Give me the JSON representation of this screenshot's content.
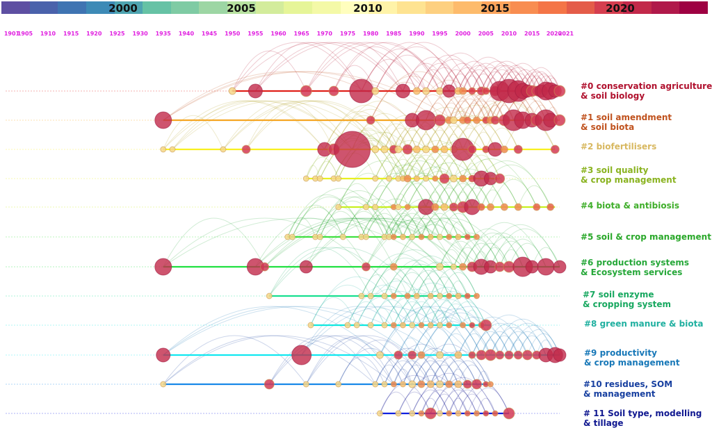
{
  "chart_data": {
    "type": "timeline",
    "title": "",
    "colorbar": {
      "label_years": [
        "2000",
        "2005",
        "2010",
        "2015",
        "2020"
      ],
      "colors": [
        "#5e4fa2",
        "#4a62ab",
        "#3f74b2",
        "#3d8ab6",
        "#4ea4b0",
        "#66c2a5",
        "#7fcba4",
        "#9dd6a4",
        "#b8e2a0",
        "#d3ec9c",
        "#e6f598",
        "#f4f9a7",
        "#fffebe",
        "#fff3a8",
        "#fee391",
        "#fdd080",
        "#fdbb6c",
        "#fca55d",
        "#f88d51",
        "#f47547",
        "#e45c49",
        "#d53e4f",
        "#c2294a",
        "#b0194a",
        "#9e0142"
      ]
    },
    "x_axis": {
      "tick_labels": [
        "1901",
        "1905",
        "1910",
        "1915",
        "1920",
        "1925",
        "1930",
        "1935",
        "1940",
        "1945",
        "1950",
        "1955",
        "1960",
        "1965",
        "1970",
        "1975",
        "1980",
        "1985",
        "1990",
        "1995",
        "2000",
        "2005",
        "2010",
        "2015",
        "2020",
        "2021"
      ],
      "range": [
        1901,
        2021
      ]
    },
    "clusters": [
      {
        "id": 0,
        "label": "#0 conservation agriculture\n& soil biology",
        "color": "#b0112e",
        "line_color": "#e0201a",
        "start": 1950,
        "end": 2021,
        "nodes": [
          [
            1950,
            5
          ],
          [
            1955,
            10
          ],
          [
            1966,
            8
          ],
          [
            1972,
            7
          ],
          [
            1978,
            17
          ],
          [
            1981,
            5
          ],
          [
            1987,
            10
          ],
          [
            1990,
            5
          ],
          [
            1992,
            5
          ],
          [
            1995,
            5
          ],
          [
            1997,
            9
          ],
          [
            1999,
            5
          ],
          [
            2000,
            5
          ],
          [
            2002,
            5
          ],
          [
            2004,
            6
          ],
          [
            2005,
            5
          ],
          [
            2007,
            7
          ],
          [
            2008,
            14
          ],
          [
            2010,
            17
          ],
          [
            2012,
            15
          ],
          [
            2013,
            11
          ],
          [
            2014,
            9
          ],
          [
            2015,
            8
          ],
          [
            2016,
            7
          ],
          [
            2017,
            9
          ],
          [
            2018,
            13
          ],
          [
            2019,
            12
          ],
          [
            2020,
            9
          ],
          [
            2021,
            8
          ]
        ]
      },
      {
        "id": 1,
        "label": "#1 soil amendment\n& soil biota",
        "color": "#c0521e",
        "line_color": "#f5a623",
        "start": 1935,
        "end": 2021,
        "nodes": [
          [
            1935,
            12
          ],
          [
            1980,
            6
          ],
          [
            1989,
            10
          ],
          [
            1992,
            14
          ],
          [
            1995,
            8
          ],
          [
            1997,
            5
          ],
          [
            1998,
            5
          ],
          [
            2000,
            5
          ],
          [
            2001,
            5
          ],
          [
            2003,
            5
          ],
          [
            2005,
            5
          ],
          [
            2006,
            5
          ],
          [
            2007,
            6
          ],
          [
            2009,
            8
          ],
          [
            2011,
            15
          ],
          [
            2013,
            12
          ],
          [
            2015,
            10
          ],
          [
            2016,
            8
          ],
          [
            2018,
            15
          ],
          [
            2019,
            10
          ],
          [
            2021,
            8
          ]
        ]
      },
      {
        "id": 2,
        "label": "#2 biofertilisers",
        "color": "#d8b860",
        "line_color": "#f8f020",
        "start": 1935,
        "end": 2020,
        "nodes": [
          [
            1935,
            4
          ],
          [
            1937,
            4
          ],
          [
            1948,
            4
          ],
          [
            1953,
            6
          ],
          [
            1970,
            10
          ],
          [
            1972,
            8
          ],
          [
            1976,
            26
          ],
          [
            1981,
            5
          ],
          [
            1983,
            5
          ],
          [
            1985,
            6
          ],
          [
            1986,
            5
          ],
          [
            1988,
            7
          ],
          [
            1990,
            5
          ],
          [
            1992,
            5
          ],
          [
            1994,
            5
          ],
          [
            1996,
            5
          ],
          [
            1998,
            5
          ],
          [
            2000,
            16
          ],
          [
            2002,
            6
          ],
          [
            2005,
            5
          ],
          [
            2007,
            10
          ],
          [
            2009,
            5
          ],
          [
            2012,
            6
          ],
          [
            2020,
            6
          ]
        ]
      },
      {
        "id": 3,
        "label": "#3 soil quality\n& crop management",
        "color": "#8ab320",
        "line_color": "#e8f020",
        "start": 1966,
        "end": 2008,
        "nodes": [
          [
            1966,
            4
          ],
          [
            1968,
            4
          ],
          [
            1969,
            4
          ],
          [
            1972,
            4
          ],
          [
            1973,
            4
          ],
          [
            1981,
            4
          ],
          [
            1984,
            4
          ],
          [
            1986,
            4
          ],
          [
            1987,
            4
          ],
          [
            1988,
            5
          ],
          [
            1990,
            4
          ],
          [
            1992,
            4
          ],
          [
            1994,
            4
          ],
          [
            1996,
            7
          ],
          [
            1998,
            5
          ],
          [
            2000,
            5
          ],
          [
            2002,
            5
          ],
          [
            2004,
            11
          ],
          [
            2006,
            9
          ],
          [
            2008,
            7
          ]
        ]
      },
      {
        "id": 4,
        "label": "#4 biota & antibiosis",
        "color": "#3fae2a",
        "line_color": "#c8f020",
        "start": 1973,
        "end": 2020,
        "nodes": [
          [
            1973,
            4
          ],
          [
            1979,
            4
          ],
          [
            1981,
            4
          ],
          [
            1985,
            4
          ],
          [
            1986,
            4
          ],
          [
            1988,
            4
          ],
          [
            1992,
            11
          ],
          [
            1994,
            5
          ],
          [
            1996,
            5
          ],
          [
            1998,
            6
          ],
          [
            2000,
            8
          ],
          [
            2002,
            11
          ],
          [
            2004,
            5
          ],
          [
            2006,
            5
          ],
          [
            2009,
            5
          ],
          [
            2012,
            5
          ],
          [
            2016,
            5
          ],
          [
            2019,
            5
          ]
        ]
      },
      {
        "id": 5,
        "label": "#5 soil & crop management",
        "color": "#2aa82a",
        "line_color": "#40e040",
        "start": 1962,
        "end": 2003,
        "nodes": [
          [
            1962,
            4
          ],
          [
            1963,
            4
          ],
          [
            1968,
            4
          ],
          [
            1969,
            4
          ],
          [
            1974,
            4
          ],
          [
            1978,
            4
          ],
          [
            1979,
            4
          ],
          [
            1983,
            4
          ],
          [
            1984,
            4
          ],
          [
            1985,
            4
          ],
          [
            1987,
            4
          ],
          [
            1989,
            4
          ],
          [
            1991,
            4
          ],
          [
            1993,
            4
          ],
          [
            1995,
            4
          ],
          [
            1997,
            4
          ],
          [
            1999,
            4
          ],
          [
            2001,
            4
          ],
          [
            2003,
            4
          ]
        ]
      },
      {
        "id": 6,
        "label": "#6 production systems\n& Ecosystem services",
        "color": "#27a83a",
        "line_color": "#20e040",
        "start": 1935,
        "end": 2021,
        "nodes": [
          [
            1935,
            12
          ],
          [
            1955,
            12
          ],
          [
            1957,
            6
          ],
          [
            1966,
            9
          ],
          [
            1979,
            6
          ],
          [
            1985,
            5
          ],
          [
            1995,
            5
          ],
          [
            1998,
            4
          ],
          [
            2000,
            5
          ],
          [
            2002,
            7
          ],
          [
            2004,
            11
          ],
          [
            2006,
            9
          ],
          [
            2008,
            7
          ],
          [
            2010,
            8
          ],
          [
            2013,
            14
          ],
          [
            2015,
            9
          ],
          [
            2018,
            12
          ],
          [
            2021,
            9
          ]
        ]
      },
      {
        "id": 7,
        "label": "#7 soil enzyme\n& cropping system",
        "color": "#18a860",
        "line_color": "#18e090",
        "start": 1958,
        "end": 2003,
        "nodes": [
          [
            1958,
            4
          ],
          [
            1978,
            4
          ],
          [
            1980,
            4
          ],
          [
            1983,
            4
          ],
          [
            1985,
            4
          ],
          [
            1988,
            4
          ],
          [
            1990,
            4
          ],
          [
            1993,
            4
          ],
          [
            1995,
            4
          ],
          [
            1997,
            4
          ],
          [
            1999,
            4
          ],
          [
            2001,
            4
          ],
          [
            2003,
            4
          ]
        ]
      },
      {
        "id": 8,
        "label": "#8 green manure & biota",
        "color": "#20b0a0",
        "line_color": "#10e8e0",
        "start": 1967,
        "end": 2006,
        "nodes": [
          [
            1967,
            4
          ],
          [
            1975,
            4
          ],
          [
            1977,
            4
          ],
          [
            1980,
            4
          ],
          [
            1983,
            4
          ],
          [
            1985,
            4
          ],
          [
            1987,
            4
          ],
          [
            1989,
            4
          ],
          [
            1991,
            4
          ],
          [
            1993,
            4
          ],
          [
            1995,
            4
          ],
          [
            1997,
            4
          ],
          [
            2000,
            4
          ],
          [
            2002,
            4
          ],
          [
            2004,
            4
          ],
          [
            2005,
            8
          ]
        ]
      },
      {
        "id": 9,
        "label": "#9 productivity\n& crop management",
        "color": "#1878b8",
        "line_color": "#10e8f0",
        "start": 1935,
        "end": 2021,
        "nodes": [
          [
            1935,
            10
          ],
          [
            1965,
            14
          ],
          [
            1982,
            5
          ],
          [
            1986,
            6
          ],
          [
            1989,
            6
          ],
          [
            1991,
            5
          ],
          [
            1995,
            5
          ],
          [
            1999,
            5
          ],
          [
            2002,
            5
          ],
          [
            2004,
            7
          ],
          [
            2006,
            8
          ],
          [
            2008,
            6
          ],
          [
            2010,
            6
          ],
          [
            2012,
            6
          ],
          [
            2014,
            7
          ],
          [
            2016,
            6
          ],
          [
            2018,
            10
          ],
          [
            2020,
            11
          ],
          [
            2021,
            9
          ]
        ]
      },
      {
        "id": 10,
        "label": "#10 residues, SOM\n& management",
        "color": "#1840a0",
        "line_color": "#1888e8",
        "start": 1935,
        "end": 2006,
        "nodes": [
          [
            1935,
            4
          ],
          [
            1958,
            7
          ],
          [
            1966,
            4
          ],
          [
            1973,
            4
          ],
          [
            1981,
            4
          ],
          [
            1983,
            4
          ],
          [
            1985,
            4
          ],
          [
            1987,
            4
          ],
          [
            1989,
            5
          ],
          [
            1991,
            5
          ],
          [
            1993,
            5
          ],
          [
            1995,
            5
          ],
          [
            1997,
            5
          ],
          [
            1999,
            5
          ],
          [
            2001,
            6
          ],
          [
            2003,
            7
          ],
          [
            2005,
            4
          ],
          [
            2006,
            4
          ]
        ]
      },
      {
        "id": 11,
        "label": "# 11 Soil type, modelling\n& tillage",
        "color": "#101890",
        "line_color": "#1020e0",
        "start": 1982,
        "end": 2010,
        "nodes": [
          [
            1982,
            4
          ],
          [
            1986,
            4
          ],
          [
            1989,
            4
          ],
          [
            1991,
            4
          ],
          [
            1993,
            8
          ],
          [
            1995,
            4
          ],
          [
            1997,
            4
          ],
          [
            1999,
            4
          ],
          [
            2001,
            4
          ],
          [
            2003,
            4
          ],
          [
            2005,
            4
          ],
          [
            2007,
            4
          ],
          [
            2010,
            8
          ]
        ]
      }
    ]
  }
}
